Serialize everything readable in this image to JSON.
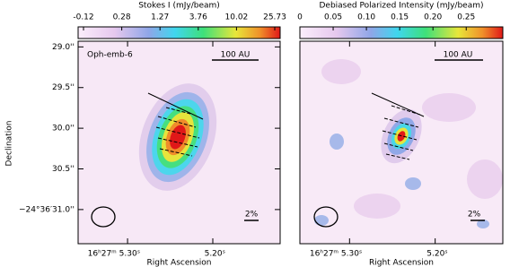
{
  "chart_data": [
    {
      "type": "image",
      "colorbar_label": "Stokes I (mJy/beam)",
      "colorbar_ticks": [
        -0.12,
        0.28,
        1.27,
        3.76,
        10.02,
        25.73
      ],
      "label": "Oph-emb-6",
      "scalebar": "100 AU",
      "vector_scale": "2%",
      "xlabel": "Right Ascension",
      "ylabel": "Declination",
      "xlim": [
        5.358,
        5.121
      ],
      "xticks": [
        {
          "value": 5.3,
          "label": "16ʰ27ᵐ 5.30ˢ"
        },
        {
          "value": 5.2,
          "label": "5.20ˢ"
        }
      ],
      "ylim": [
        31.42,
        28.93
      ],
      "yticks": [
        {
          "value": 29.0,
          "label": "29.0''"
        },
        {
          "value": 29.5,
          "label": "29.5''"
        },
        {
          "value": 30.0,
          "label": "30.0''"
        },
        {
          "value": 30.5,
          "label": "30.5''"
        },
        {
          "value": 31.0,
          "label": "−24°36′31.0''"
        }
      ]
    },
    {
      "type": "image",
      "colorbar_label": "Debiased Polarized Intensity (mJy/beam)",
      "clim": [
        0,
        0.305
      ],
      "colorbar_ticks": [
        0,
        0.05,
        {
          "value": 0.1,
          "label": "0.10"
        },
        0.15,
        {
          "value": 0.2,
          "label": "0.20"
        },
        0.25
      ],
      "scalebar": "100 AU",
      "vector_scale": "2%",
      "xlabel": "Right Ascension",
      "xlim": [
        5.358,
        5.121
      ],
      "xticks": [
        {
          "value": 5.3,
          "label": "16ʰ27ᵐ 5.30ˢ"
        },
        {
          "value": 5.2,
          "label": "5.20ˢ"
        }
      ],
      "ylim": [
        31.42,
        28.93
      ]
    }
  ]
}
